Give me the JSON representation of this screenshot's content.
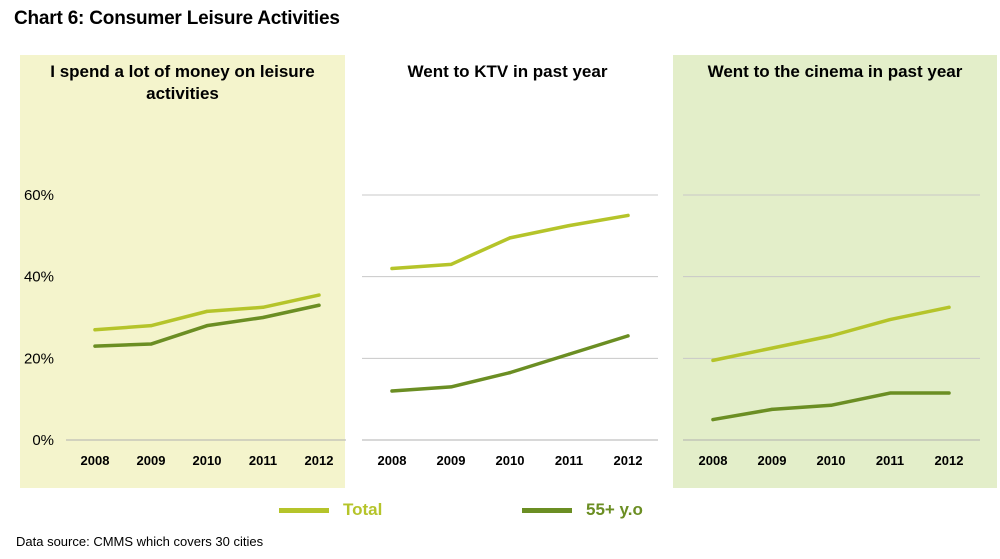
{
  "title": "Chart 6:  Consumer Leisure Activities",
  "footnote": "Data source: CMMS which covers 30 cities",
  "colors": {
    "total": "#b5c42a",
    "senior": "#6b8e23",
    "panel_left_bg": "#f4f4cc",
    "panel_right_bg": "#e3eec9",
    "grid": "#c8c8c8"
  },
  "legend": [
    {
      "label": "Total",
      "color": "#b5c42a"
    },
    {
      "label": "55+ y.o",
      "color": "#6b8e23"
    }
  ],
  "chart_data": [
    {
      "type": "line",
      "title": "I spend a lot of money on leisure activities",
      "categories": [
        "2008",
        "2009",
        "2010",
        "2011",
        "2012"
      ],
      "ylim": [
        0,
        60
      ],
      "yticks": [
        "0%",
        "20%",
        "40%",
        "60%"
      ],
      "grid": false,
      "background": "#f4f4cc",
      "series": [
        {
          "name": "Total",
          "values": [
            27,
            28,
            31.5,
            32.5,
            35.5
          ]
        },
        {
          "name": "55+ y.o",
          "values": [
            23,
            23.5,
            28,
            30,
            33
          ]
        }
      ]
    },
    {
      "type": "line",
      "title": "Went to KTV in past year",
      "categories": [
        "2008",
        "2009",
        "2010",
        "2011",
        "2012"
      ],
      "ylim": [
        0,
        60
      ],
      "grid": true,
      "background": "#ffffff",
      "series": [
        {
          "name": "Total",
          "values": [
            42,
            43,
            49.5,
            52.5,
            55
          ]
        },
        {
          "name": "55+ y.o",
          "values": [
            12,
            13,
            16.5,
            21,
            25.5
          ]
        }
      ]
    },
    {
      "type": "line",
      "title": "Went to the cinema in past year",
      "categories": [
        "2008",
        "2009",
        "2010",
        "2011",
        "2012"
      ],
      "ylim": [
        0,
        60
      ],
      "grid": true,
      "background": "#e3eec9",
      "series": [
        {
          "name": "Total",
          "values": [
            19.5,
            22.5,
            25.5,
            29.5,
            32.5
          ]
        },
        {
          "name": "55+ y.o",
          "values": [
            5,
            7.5,
            8.5,
            11.5,
            11.5
          ]
        }
      ]
    }
  ]
}
